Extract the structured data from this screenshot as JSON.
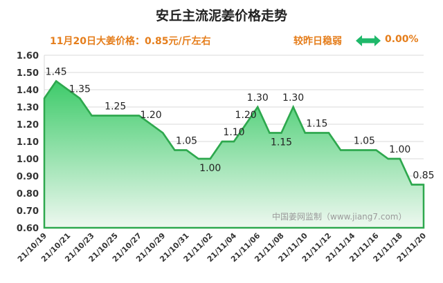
{
  "header": {
    "title": "安丘主流泥姜价格走势",
    "subtitle": "11月20日大姜价格：0.85元/斤左右",
    "trend": "较昨日稳弱",
    "change": "0.00%",
    "arrow_icon": "double-arrow-icon",
    "arrow_color": "#1fb86a"
  },
  "watermark": "中国姜网监制（www.jiang7.com）",
  "colors": {
    "line": "#2ea84e",
    "fill_top": "#3ecb6a",
    "fill_bottom": "#eef8f0",
    "grid": "#d9d9d9"
  },
  "chart_data": {
    "type": "area",
    "title": "安丘主流泥姜价格走势",
    "ylim": [
      0.6,
      1.6
    ],
    "yticks": [
      "0.60",
      "0.70",
      "0.80",
      "0.90",
      "1.00",
      "1.10",
      "1.20",
      "1.30",
      "1.40",
      "1.50",
      "1.60"
    ],
    "xtick_labels": [
      "21/10/19",
      "21/10/21",
      "21/10/23",
      "21/10/25",
      "21/10/27",
      "21/10/29",
      "21/10/31",
      "21/11/02",
      "21/11/04",
      "21/11/06",
      "21/11/08",
      "21/11/10",
      "21/11/12",
      "21/11/14",
      "21/11/16",
      "21/11/18",
      "21/11/20"
    ],
    "grid": "horizontal",
    "series": [
      {
        "name": "大姜价格",
        "x": [
          "21/10/19",
          "21/10/20",
          "21/10/21",
          "21/10/22",
          "21/10/23",
          "21/10/24",
          "21/10/25",
          "21/10/26",
          "21/10/27",
          "21/10/28",
          "21/10/29",
          "21/10/30",
          "21/10/31",
          "21/11/01",
          "21/11/02",
          "21/11/03",
          "21/11/04",
          "21/11/05",
          "21/11/06",
          "21/11/07",
          "21/11/08",
          "21/11/09",
          "21/11/10",
          "21/11/11",
          "21/11/12",
          "21/11/13",
          "21/11/14",
          "21/11/15",
          "21/11/16",
          "21/11/17",
          "21/11/18",
          "21/11/19",
          "21/11/20"
        ],
        "values": [
          1.35,
          1.45,
          1.4,
          1.35,
          1.25,
          1.25,
          1.25,
          1.25,
          1.25,
          1.2,
          1.15,
          1.05,
          1.05,
          1.0,
          1.0,
          1.1,
          1.1,
          1.2,
          1.3,
          1.15,
          1.15,
          1.3,
          1.15,
          1.15,
          1.15,
          1.05,
          1.05,
          1.05,
          1.05,
          1.0,
          1.0,
          0.85,
          0.85
        ]
      }
    ],
    "data_labels": [
      {
        "x": "21/10/20",
        "label": "1.45"
      },
      {
        "x": "21/10/22",
        "label": "1.35"
      },
      {
        "x": "21/10/25",
        "label": "1.25"
      },
      {
        "x": "21/10/28",
        "label": "1.20"
      },
      {
        "x": "21/10/31",
        "label": "1.05"
      },
      {
        "x": "21/11/02",
        "label": "1.00"
      },
      {
        "x": "21/11/04",
        "label": "1.10"
      },
      {
        "x": "21/11/05",
        "label": "1.20"
      },
      {
        "x": "21/11/06",
        "label": "1.30"
      },
      {
        "x": "21/11/08",
        "label": "1.15"
      },
      {
        "x": "21/11/09",
        "label": "1.30"
      },
      {
        "x": "21/11/11",
        "label": "1.15"
      },
      {
        "x": "21/11/15",
        "label": "1.05"
      },
      {
        "x": "21/11/18",
        "label": "1.00"
      },
      {
        "x": "21/11/20",
        "label": "0.85"
      }
    ]
  }
}
